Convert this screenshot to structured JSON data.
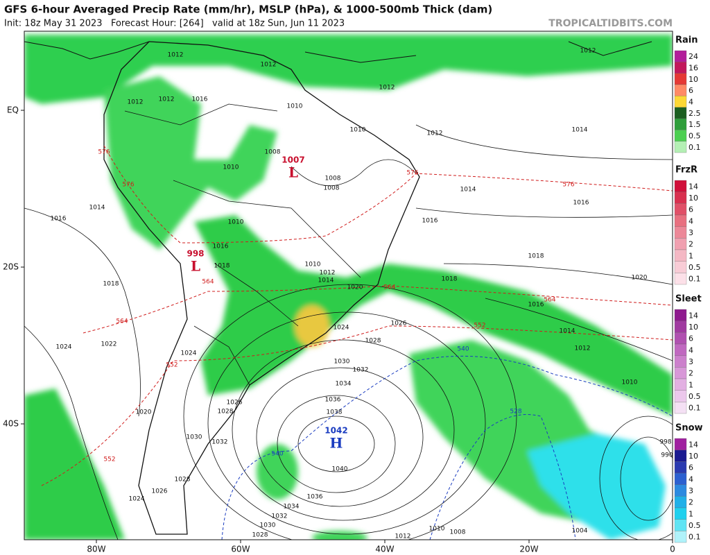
{
  "header": {
    "title": "GFS 6-hour Averaged Precip Rate (mm/hr), MSLP (hPa), & 1000-500mb Thick (dam)",
    "subtitle": "Init: 18z May 31 2023   Forecast Hour: [264]   valid at 18z Sun, Jun 11 2023",
    "watermark": "TROPICALTIDBITS.COM"
  },
  "legend": [
    {
      "title": "Rain",
      "labels": [
        "24",
        "16",
        "10",
        "6",
        "4",
        "2.5",
        "1.5",
        "0.5",
        "0.1"
      ]
    },
    {
      "title": "FrzR",
      "labels": [
        "14",
        "10",
        "6",
        "4",
        "3",
        "2",
        "1",
        "0.5",
        "0.1"
      ]
    },
    {
      "title": "Sleet",
      "labels": [
        "14",
        "10",
        "6",
        "4",
        "3",
        "2",
        "1",
        "0.5",
        "0.1"
      ]
    },
    {
      "title": "Snow",
      "labels": [
        "14",
        "10",
        "6",
        "4",
        "3",
        "2",
        "1",
        "0.5",
        "0.1"
      ]
    }
  ],
  "axes": {
    "lat": [
      "EQ",
      "20S",
      "40S"
    ],
    "lon": [
      "80W",
      "60W",
      "40W",
      "20W",
      "0"
    ]
  },
  "map": {
    "centers": [
      {
        "value": "1007",
        "symbol": "L"
      },
      {
        "value": "998",
        "symbol": "L"
      },
      {
        "value": "1042",
        "symbol": "H"
      }
    ],
    "isobars": [
      "1012",
      "1012",
      "1012",
      "1012",
      "1012",
      "1016",
      "1010",
      "1010",
      "1012",
      "1014",
      "1012",
      "1008",
      "1010",
      "1008",
      "1008",
      "1014",
      "1016",
      "1014",
      "1016",
      "1016",
      "1010",
      "1016",
      "1018",
      "1018",
      "1010",
      "1012",
      "1014",
      "1020",
      "1018",
      "1020",
      "1018",
      "1016",
      "1026",
      "1024",
      "1028",
      "1014",
      "1012",
      "1024",
      "1022",
      "1024",
      "1030",
      "1032",
      "1034",
      "1036",
      "1026",
      "1028",
      "1038",
      "1010",
      "1020",
      "1030",
      "1032",
      "1040",
      "1028",
      "1026",
      "1024",
      "1036",
      "1034",
      "1032",
      "1030",
      "1028",
      "1012",
      "1010",
      "1008",
      "1004",
      "998",
      "990"
    ],
    "thickness_red": [
      "576",
      "576",
      "576",
      "576",
      "564",
      "564",
      "552",
      "564",
      "552",
      "552",
      "564"
    ],
    "thickness_blue": [
      "540",
      "540",
      "528"
    ]
  }
}
